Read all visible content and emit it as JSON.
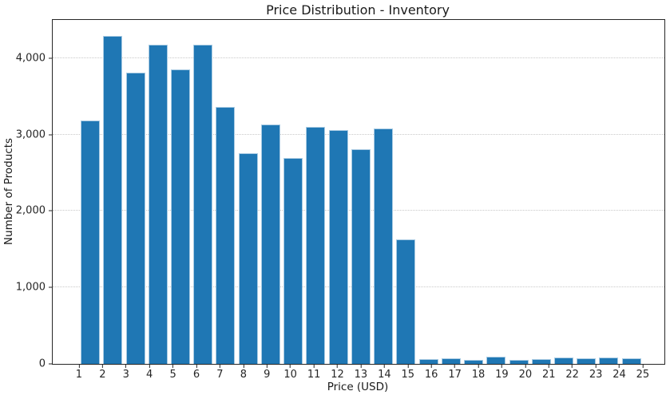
{
  "chart_data": {
    "type": "bar",
    "title": "Price Distribution - Inventory",
    "xlabel": "Price (USD)",
    "ylabel": "Number of Products",
    "categories": [
      1,
      2,
      3,
      4,
      5,
      6,
      7,
      8,
      9,
      10,
      11,
      12,
      13,
      14,
      15,
      16,
      17,
      18,
      19,
      20,
      21,
      22,
      23,
      24,
      25
    ],
    "values": [
      3180,
      4290,
      3810,
      4175,
      3850,
      4175,
      3360,
      2755,
      3130,
      2695,
      3105,
      3060,
      2810,
      3080,
      1630,
      60,
      70,
      55,
      90,
      50,
      60,
      80,
      70,
      85,
      70
    ],
    "ylim": [
      0,
      4500
    ],
    "yticks": [
      0,
      1000,
      2000,
      3000,
      4000
    ],
    "ytick_labels": [
      "0",
      "1,000",
      "2,000",
      "3,000",
      "4,000"
    ],
    "xlim": [
      -0.12,
      25.92
    ],
    "bar_span": [
      1,
      25
    ],
    "grid": "horizontal dotted gridlines at y ticks",
    "legend": "none",
    "bar_color": "#1f77b4",
    "bar_edge_color": "#a9cbe3",
    "grid_color": "#c9c9c9",
    "axis_color": "#262626"
  }
}
